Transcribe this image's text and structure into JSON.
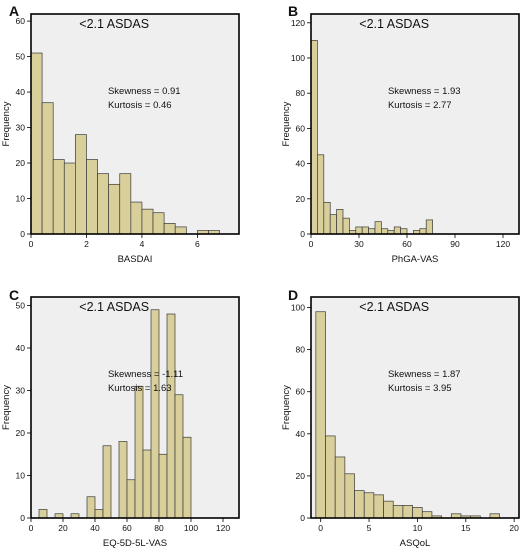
{
  "chart_data": [
    {
      "type": "bar",
      "panel": "A",
      "title": "<2.1 ASDAS",
      "xlabel": "BASDAI",
      "ylabel": "Frequency",
      "stats": [
        "Skewness = 0.91",
        "Kurtosis = 0.46"
      ],
      "xlim": [
        0,
        7.5
      ],
      "ylim": [
        0,
        62
      ],
      "xticks": [
        0,
        2,
        4,
        6
      ],
      "yticks": [
        0,
        10,
        20,
        30,
        40,
        50,
        60
      ],
      "bin_start": 0,
      "bin_width": 0.4,
      "values": [
        51,
        37,
        21,
        20,
        28,
        21,
        17,
        14,
        17,
        9,
        7,
        6,
        3,
        2,
        0,
        1,
        1
      ],
      "grid": false
    },
    {
      "type": "bar",
      "panel": "B",
      "title": "<2.1 ASDAS",
      "xlabel": "PhGA-VAS",
      "ylabel": "Frequency",
      "stats": [
        "Skewness = 1.93",
        "Kurtosis = 2.77"
      ],
      "xlim": [
        0,
        130
      ],
      "ylim": [
        0,
        125
      ],
      "xticks": [
        0,
        30,
        60,
        90,
        120
      ],
      "yticks": [
        0,
        20,
        40,
        60,
        80,
        100,
        120
      ],
      "bin_start": 0,
      "bin_width": 4,
      "values": [
        110,
        45,
        18,
        11,
        14,
        9,
        2,
        4,
        4,
        3,
        7,
        3,
        2,
        4,
        3,
        0,
        2,
        3,
        8
      ],
      "grid": false
    },
    {
      "type": "bar",
      "panel": "C",
      "title": "<2.1 ASDAS",
      "xlabel": "EQ-5D-5L-VAS",
      "ylabel": "Frequency",
      "stats": [
        "Skewness = -1.11",
        "Kurtosis = 1.63"
      ],
      "xlim": [
        0,
        130
      ],
      "ylim": [
        0,
        52
      ],
      "xticks": [
        0,
        20,
        40,
        60,
        80,
        100,
        120
      ],
      "yticks": [
        0,
        10,
        20,
        30,
        40,
        50
      ],
      "bins": [
        {
          "start": 5,
          "value": 2
        },
        {
          "start": 15,
          "value": 1
        },
        {
          "start": 25,
          "value": 1
        },
        {
          "start": 35,
          "value": 5
        },
        {
          "start": 40,
          "value": 2
        },
        {
          "start": 45,
          "value": 17
        },
        {
          "start": 55,
          "value": 18
        },
        {
          "start": 60,
          "value": 9
        },
        {
          "start": 65,
          "value": 31
        },
        {
          "start": 70,
          "value": 16
        },
        {
          "start": 75,
          "value": 49
        },
        {
          "start": 80,
          "value": 15
        },
        {
          "start": 85,
          "value": 48
        },
        {
          "start": 90,
          "value": 29
        },
        {
          "start": 95,
          "value": 19
        }
      ],
      "bin_width": 5,
      "grid": false
    },
    {
      "type": "bar",
      "panel": "D",
      "title": "<2.1 ASDAS",
      "xlabel": "ASQoL",
      "ylabel": "Frequency",
      "stats": [
        "Skewness = 1.87",
        "Kurtosis = 3.95"
      ],
      "xlim": [
        -1,
        20.5
      ],
      "ylim": [
        0,
        105
      ],
      "xticks": [
        0,
        5,
        10,
        15,
        20
      ],
      "yticks": [
        0,
        20,
        40,
        60,
        80,
        100
      ],
      "bin_start": -0.5,
      "bin_width": 1,
      "values": [
        98,
        39,
        29,
        21,
        13,
        12,
        11,
        8,
        6,
        6,
        5,
        3,
        1,
        0,
        2,
        1,
        1,
        0,
        2
      ],
      "grid": false
    }
  ]
}
